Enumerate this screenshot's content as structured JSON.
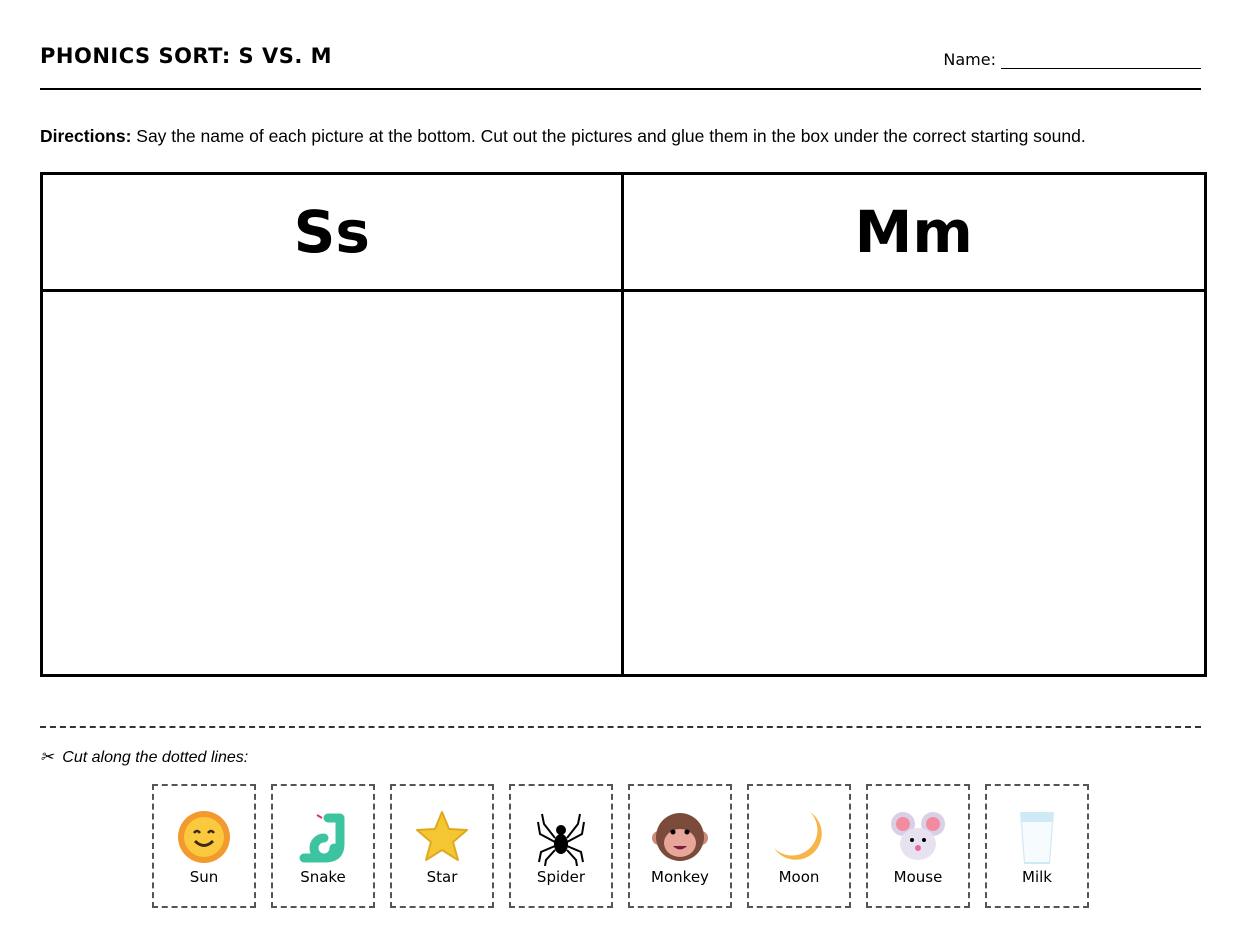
{
  "header": {
    "title": "PHONICS SORT: S VS. M",
    "name_label": "Name:"
  },
  "directions": {
    "label": "Directions:",
    "text": " Say the name of each picture at the bottom. Cut out the pictures and glue them in the box under the correct starting sound."
  },
  "sort_table": {
    "columns": [
      "Ss",
      "Mm"
    ]
  },
  "cut": {
    "icon": "scissors-icon",
    "text": "Cut along the dotted lines:"
  },
  "cards": [
    {
      "label": "Sun",
      "icon": "sun"
    },
    {
      "label": "Snake",
      "icon": "snake"
    },
    {
      "label": "Star",
      "icon": "star"
    },
    {
      "label": "Spider",
      "icon": "spider"
    },
    {
      "label": "Monkey",
      "icon": "monkey"
    },
    {
      "label": "Moon",
      "icon": "moon"
    },
    {
      "label": "Mouse",
      "icon": "mouse"
    },
    {
      "label": "Milk",
      "icon": "milk"
    }
  ]
}
